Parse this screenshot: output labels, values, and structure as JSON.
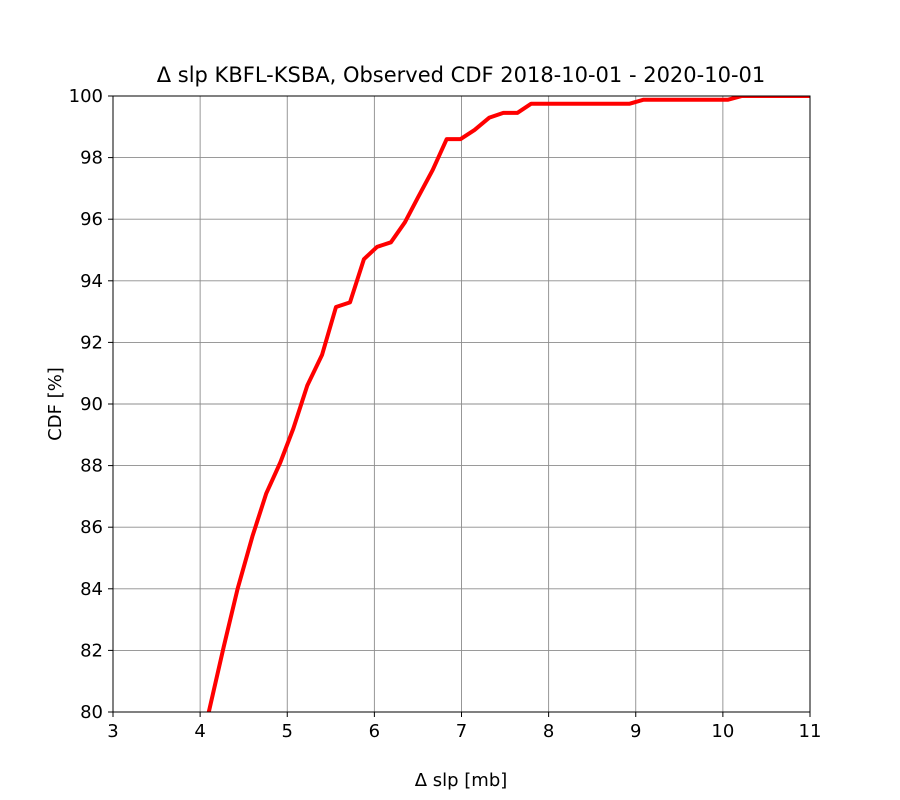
{
  "chart_data": {
    "type": "line",
    "title": "Δ slp KBFL-KSBA, Observed CDF 2018-10-01 - 2020-10-01",
    "xlabel": "Δ slp [mb]",
    "ylabel": "CDF [%]",
    "xlim": [
      3,
      11
    ],
    "ylim": [
      80,
      100
    ],
    "xticks": [
      "3",
      "4",
      "5",
      "6",
      "7",
      "8",
      "9",
      "10",
      "11"
    ],
    "yticks": [
      "80",
      "82",
      "84",
      "86",
      "88",
      "90",
      "92",
      "94",
      "96",
      "98",
      "100"
    ],
    "grid": true,
    "series": [
      {
        "color": "#ff0000",
        "x": [
          4.1,
          4.27,
          4.43,
          4.6,
          4.76,
          4.92,
          5.07,
          5.23,
          5.4,
          5.56,
          5.72,
          5.88,
          6.03,
          6.19,
          6.35,
          6.5,
          6.67,
          6.83,
          6.99,
          7.15,
          7.32,
          7.48,
          7.64,
          7.8,
          7.96,
          8.13,
          8.29,
          8.45,
          8.61,
          8.77,
          8.93,
          9.09,
          9.25,
          9.41,
          9.58,
          9.74,
          9.9,
          10.06,
          10.22,
          10.38,
          10.54,
          10.7,
          10.86,
          11.0
        ],
        "y": [
          80.0,
          82.1,
          84.0,
          85.7,
          87.1,
          88.1,
          89.2,
          90.6,
          91.6,
          93.15,
          93.3,
          94.7,
          95.1,
          95.25,
          95.9,
          96.7,
          97.6,
          98.6,
          98.6,
          98.9,
          99.3,
          99.45,
          99.45,
          99.75,
          99.75,
          99.75,
          99.75,
          99.75,
          99.75,
          99.75,
          99.75,
          99.88,
          99.88,
          99.88,
          99.88,
          99.88,
          99.88,
          99.88,
          100.0,
          100.0,
          100.0,
          100.0,
          100.0,
          100.0
        ]
      }
    ]
  }
}
